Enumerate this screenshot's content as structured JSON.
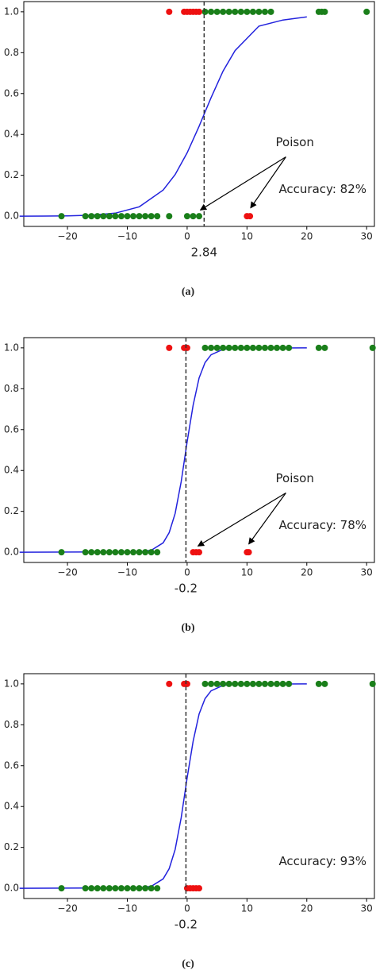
{
  "chart_data": [
    {
      "type": "scatter",
      "caption": "(a)",
      "threshold": 2.84,
      "annotation": "Poison",
      "accuracy": "Accuracy: 82%",
      "xlim": [
        -27.3,
        31.3
      ],
      "ylim": [
        -0.05,
        1.05
      ],
      "xticks": [
        {
          "value": -20,
          "label": "−20"
        },
        {
          "value": -10,
          "label": "−10"
        },
        0,
        10,
        20,
        30
      ],
      "yticks": [
        {
          "value": 0,
          "label": "0.0"
        },
        0.2,
        0.4,
        0.6,
        0.8,
        {
          "value": 1,
          "label": "1.0"
        }
      ],
      "series": [
        {
          "color": "#1a7f1a",
          "x": [
            -21,
            -17,
            -16,
            -15,
            -14,
            -13,
            -12,
            -11,
            -10,
            -9,
            -8,
            -7,
            -6,
            -5,
            -3,
            0,
            1,
            2
          ],
          "y": [
            0,
            0,
            0,
            0,
            0,
            0,
            0,
            0,
            0,
            0,
            0,
            0,
            0,
            0,
            0,
            0,
            0,
            0
          ]
        },
        {
          "color": "#ee1111",
          "x": [
            10,
            10.5
          ],
          "y": [
            0,
            0
          ]
        },
        {
          "color": "#1a7f1a",
          "x": [
            3,
            4,
            5,
            6,
            7,
            8,
            9,
            10,
            11,
            12,
            13,
            14,
            22,
            22.5,
            23,
            30
          ],
          "y": [
            1,
            1,
            1,
            1,
            1,
            1,
            1,
            1,
            1,
            1,
            1,
            1,
            1,
            1,
            1,
            1
          ]
        },
        {
          "color": "#ee1111",
          "x": [
            -3,
            -0.5,
            0,
            0.5,
            1,
            1.5,
            2
          ],
          "y": [
            1,
            1,
            1,
            1,
            1,
            1,
            1
          ]
        }
      ],
      "curve": {
        "color": "#2222dd",
        "x": [
          -28,
          -24,
          -20,
          -16,
          -12,
          -8,
          -4,
          -2,
          0,
          2,
          4,
          6,
          8,
          12,
          16,
          20
        ],
        "y": [
          0.0002,
          0.0005,
          0.0017,
          0.005,
          0.015,
          0.046,
          0.128,
          0.204,
          0.31,
          0.44,
          0.58,
          0.71,
          0.81,
          0.93,
          0.96,
          0.975
        ]
      }
    },
    {
      "type": "scatter",
      "caption": "(b)",
      "threshold": -0.2,
      "annotation": "Poison",
      "accuracy": "Accuracy: 78%",
      "xlim": [
        -27.3,
        31.3
      ],
      "ylim": [
        -0.05,
        1.05
      ],
      "xticks": [
        {
          "value": -20,
          "label": "−20"
        },
        {
          "value": -10,
          "label": "−10"
        },
        0,
        10,
        20,
        30
      ],
      "yticks": [
        {
          "value": 0,
          "label": "0.0"
        },
        0.2,
        0.4,
        0.6,
        0.8,
        {
          "value": 1,
          "label": "1.0"
        }
      ],
      "series": [
        {
          "color": "#1a7f1a",
          "x": [
            -21,
            -17,
            -16,
            -15,
            -14,
            -13,
            -12,
            -11,
            -10,
            -9,
            -8,
            -7,
            -6,
            -5
          ],
          "y": [
            0,
            0,
            0,
            0,
            0,
            0,
            0,
            0,
            0,
            0,
            0,
            0,
            0,
            0
          ]
        },
        {
          "color": "#ee1111",
          "x": [
            1,
            1.5,
            2,
            10,
            10.3
          ],
          "y": [
            0,
            0,
            0,
            0,
            0
          ]
        },
        {
          "color": "#1a7f1a",
          "x": [
            3,
            4,
            5,
            6,
            7,
            8,
            9,
            10,
            11,
            12,
            13,
            14,
            15,
            16,
            17,
            22,
            23,
            31
          ],
          "y": [
            1,
            1,
            1,
            1,
            1,
            1,
            1,
            1,
            1,
            1,
            1,
            1,
            1,
            1,
            1,
            1,
            1,
            1
          ]
        },
        {
          "color": "#ee1111",
          "x": [
            -3,
            -0.5,
            0
          ],
          "y": [
            1,
            1,
            1
          ]
        }
      ],
      "curve": {
        "color": "#2222dd",
        "x": [
          -28,
          -8,
          -6,
          -4,
          -3,
          -2,
          -1,
          0,
          1,
          2,
          3,
          4,
          6,
          8,
          20
        ],
        "y": [
          0,
          0.002,
          0.01,
          0.046,
          0.096,
          0.19,
          0.345,
          0.54,
          0.72,
          0.853,
          0.928,
          0.966,
          0.993,
          0.998,
          1
        ]
      }
    },
    {
      "type": "scatter",
      "caption": "(c)",
      "threshold": -0.2,
      "accuracy": "Accuracy: 93%",
      "xlim": [
        -27.3,
        31.3
      ],
      "ylim": [
        -0.05,
        1.05
      ],
      "xticks": [
        {
          "value": -20,
          "label": "−20"
        },
        {
          "value": -10,
          "label": "−10"
        },
        0,
        10,
        20,
        30
      ],
      "yticks": [
        {
          "value": 0,
          "label": "0.0"
        },
        0.2,
        0.4,
        0.6,
        0.8,
        {
          "value": 1,
          "label": "1.0"
        }
      ],
      "series": [
        {
          "color": "#1a7f1a",
          "x": [
            -21,
            -17,
            -16,
            -15,
            -14,
            -13,
            -12,
            -11,
            -10,
            -9,
            -8,
            -7,
            -6,
            -5
          ],
          "y": [
            0,
            0,
            0,
            0,
            0,
            0,
            0,
            0,
            0,
            0,
            0,
            0,
            0,
            0
          ]
        },
        {
          "color": "#ee1111",
          "x": [
            0,
            0.5,
            1,
            1.5,
            2
          ],
          "y": [
            0,
            0,
            0,
            0,
            0
          ]
        },
        {
          "color": "#1a7f1a",
          "x": [
            3,
            4,
            5,
            6,
            7,
            8,
            9,
            10,
            11,
            12,
            13,
            14,
            15,
            16,
            17,
            22,
            23,
            31
          ],
          "y": [
            1,
            1,
            1,
            1,
            1,
            1,
            1,
            1,
            1,
            1,
            1,
            1,
            1,
            1,
            1,
            1,
            1,
            1
          ]
        },
        {
          "color": "#ee1111",
          "x": [
            -3,
            -0.5,
            0
          ],
          "y": [
            1,
            1,
            1
          ]
        }
      ],
      "curve": {
        "color": "#2222dd",
        "x": [
          -28,
          -8,
          -6,
          -4,
          -3,
          -2,
          -1,
          0,
          1,
          2,
          3,
          4,
          6,
          8,
          20
        ],
        "y": [
          0,
          0.002,
          0.01,
          0.046,
          0.096,
          0.19,
          0.345,
          0.54,
          0.72,
          0.853,
          0.928,
          0.966,
          0.993,
          0.998,
          1
        ]
      }
    }
  ]
}
